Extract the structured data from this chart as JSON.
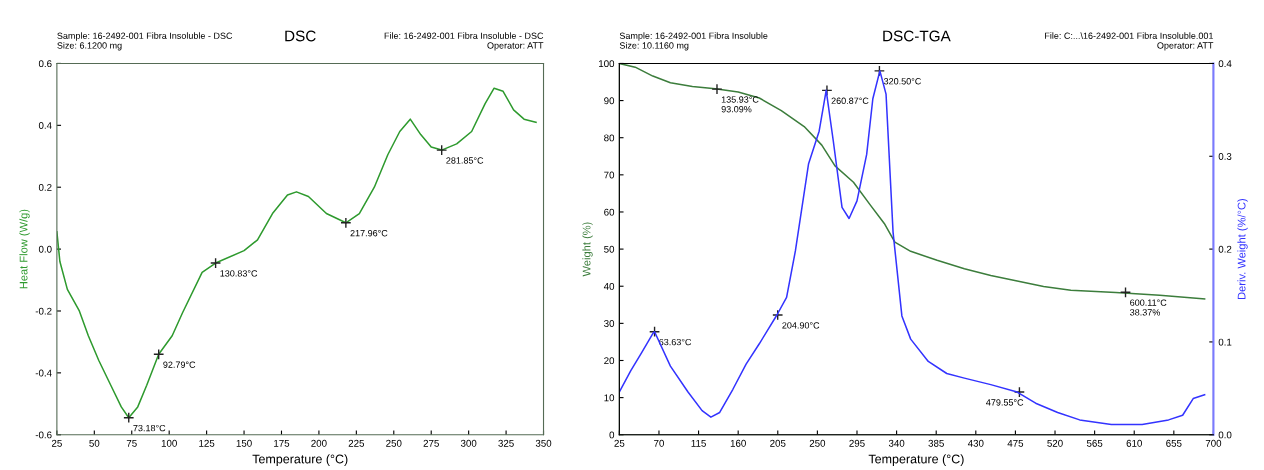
{
  "chart_data": [
    {
      "type": "line",
      "title": "DSC",
      "xlabel": "Temperature (°C)",
      "ylabel": "Heat Flow (W/g)",
      "xlim": [
        25,
        350
      ],
      "xticks": [
        25,
        50,
        75,
        100,
        125,
        150,
        175,
        200,
        225,
        250,
        275,
        300,
        325,
        350
      ],
      "ylim": [
        -0.6,
        0.6
      ],
      "yticks": [
        {
          "value": 0.6,
          "label": "0.6"
        },
        0.4,
        0.2,
        {
          "value": 0,
          "label": "0.0"
        },
        -0.2,
        -0.4,
        {
          "value": -0.6,
          "label": "-0.6"
        }
      ],
      "grid": false,
      "legend": false,
      "line_style": "solid",
      "marker": "none",
      "series": [
        {
          "color": "#2e9a2e",
          "x": [
            25,
            27,
            32,
            40,
            46,
            53,
            61,
            68,
            73,
            79,
            85,
            93,
            102,
            109,
            122,
            131,
            150,
            159,
            169,
            179,
            185,
            193,
            205,
            218,
            227,
            237,
            246,
            254,
            261,
            268,
            275,
            282,
            292,
            302,
            311,
            317,
            323,
            330,
            337,
            345
          ],
          "values": [
            0.056,
            -0.04,
            -0.13,
            -0.2,
            -0.28,
            -0.36,
            -0.44,
            -0.51,
            -0.545,
            -0.51,
            -0.44,
            -0.34,
            -0.28,
            -0.205,
            -0.075,
            -0.045,
            -0.005,
            0.03,
            0.115,
            0.175,
            0.185,
            0.17,
            0.115,
            0.085,
            0.115,
            0.2,
            0.305,
            0.38,
            0.42,
            0.37,
            0.33,
            0.32,
            0.34,
            0.38,
            0.47,
            0.52,
            0.51,
            0.45,
            0.42,
            0.41
          ]
        }
      ],
      "annotations": [
        "Sample: 16-2492-001 Fibra Insoluble - DSC\nSize: 6.1200 mg",
        "File: 16-2492-001 Fibra Insoluble - DSC\nOperator: ATT",
        {
          "text": "73.18°C",
          "x": 73,
          "y": -0.545
        },
        {
          "text": "92.79°C",
          "x": 93,
          "y": -0.34
        },
        {
          "text": "130.83°C",
          "x": 131,
          "y": -0.045
        },
        {
          "text": "217.96°C",
          "x": 218,
          "y": 0.085
        },
        {
          "text": "281.85°C",
          "x": 282,
          "y": 0.32
        }
      ]
    },
    {
      "type": "line",
      "title": "DSC-TGA",
      "xlabel": "Temperature (°C)",
      "ylabel": "Weight (%)",
      "y2label": "Deriv. Weight (%/°C)",
      "xlim": [
        25,
        700
      ],
      "xticks": [
        25,
        70,
        115,
        160,
        205,
        250,
        295,
        340,
        385,
        430,
        475,
        520,
        565,
        610,
        655,
        700
      ],
      "ylim": [
        0,
        100
      ],
      "yticks": [
        0,
        10,
        20,
        30,
        40,
        50,
        60,
        70,
        80,
        90,
        100
      ],
      "y2lim": [
        0,
        0.4
      ],
      "y2ticks": [
        {
          "value": 0,
          "label": "0.0"
        },
        0.1,
        0.2,
        0.3,
        0.4
      ],
      "grid": false,
      "legend": false,
      "line_style": "solid",
      "marker": "none",
      "series": [
        {
          "color": "#3c7d3c",
          "x": [
            25,
            43,
            63,
            83,
            108,
            134,
            160,
            184,
            209,
            235,
            255,
            270,
            291,
            310,
            326,
            338,
            356,
            386,
            417,
            447,
            477,
            507,
            538,
            589,
            639,
            690
          ],
          "values": [
            100,
            99,
            96.6,
            94.8,
            93.8,
            93.2,
            92.3,
            90.7,
            87.3,
            83,
            78,
            72.4,
            68,
            61.9,
            56.9,
            51.9,
            49.4,
            47,
            44.7,
            42.9,
            41.4,
            39.9,
            38.9,
            38.3,
            37.6,
            36.6
          ]
        },
        {
          "color": "#3333ff",
          "axis": "y2",
          "x": [
            25,
            38,
            50,
            63,
            65,
            83,
            103,
            119,
            129,
            139,
            154,
            169,
            184,
            204,
            215,
            225,
            240,
            252,
            260,
            268,
            278,
            286,
            295,
            306,
            313,
            321,
            328,
            336,
            346,
            356,
            376,
            397,
            417,
            447,
            477,
            498,
            523,
            548,
            584,
            619,
            649,
            665,
            677,
            690
          ],
          "values": [
            0.046,
            0.069,
            0.088,
            0.109,
            0.111,
            0.074,
            0.046,
            0.026,
            0.019,
            0.024,
            0.049,
            0.076,
            0.098,
            0.129,
            0.148,
            0.198,
            0.292,
            0.327,
            0.371,
            0.317,
            0.245,
            0.233,
            0.252,
            0.302,
            0.362,
            0.392,
            0.367,
            0.218,
            0.128,
            0.103,
            0.079,
            0.066,
            0.061,
            0.054,
            0.046,
            0.034,
            0.024,
            0.016,
            0.011,
            0.011,
            0.016,
            0.021,
            0.039,
            0.043
          ]
        }
      ],
      "annotations": [
        "Sample: 16-2492-001 Fibra Insoluble\nSize: 10.1160 mg",
        "File: C:...\\16-2492-001 Fibra Insoluble.001\nOperator: ATT",
        {
          "text": "135.93°C\n93.09%",
          "x": 135.93,
          "y": 93.09
        },
        {
          "text": "600.11°C\n38.37%",
          "x": 600.11,
          "y": 38.37
        },
        {
          "text": "63.63°C",
          "x": 65,
          "y": 27.75
        },
        {
          "text": "204.90°C",
          "x": 204.9,
          "y": 32.25
        },
        {
          "text": "260.87°C",
          "x": 260.87,
          "y": 92.75
        },
        {
          "text": "320.50°C",
          "x": 320.5,
          "y": 98
        },
        {
          "text": "479.55°C",
          "x": 479.55,
          "y": 11.5
        }
      ]
    }
  ]
}
